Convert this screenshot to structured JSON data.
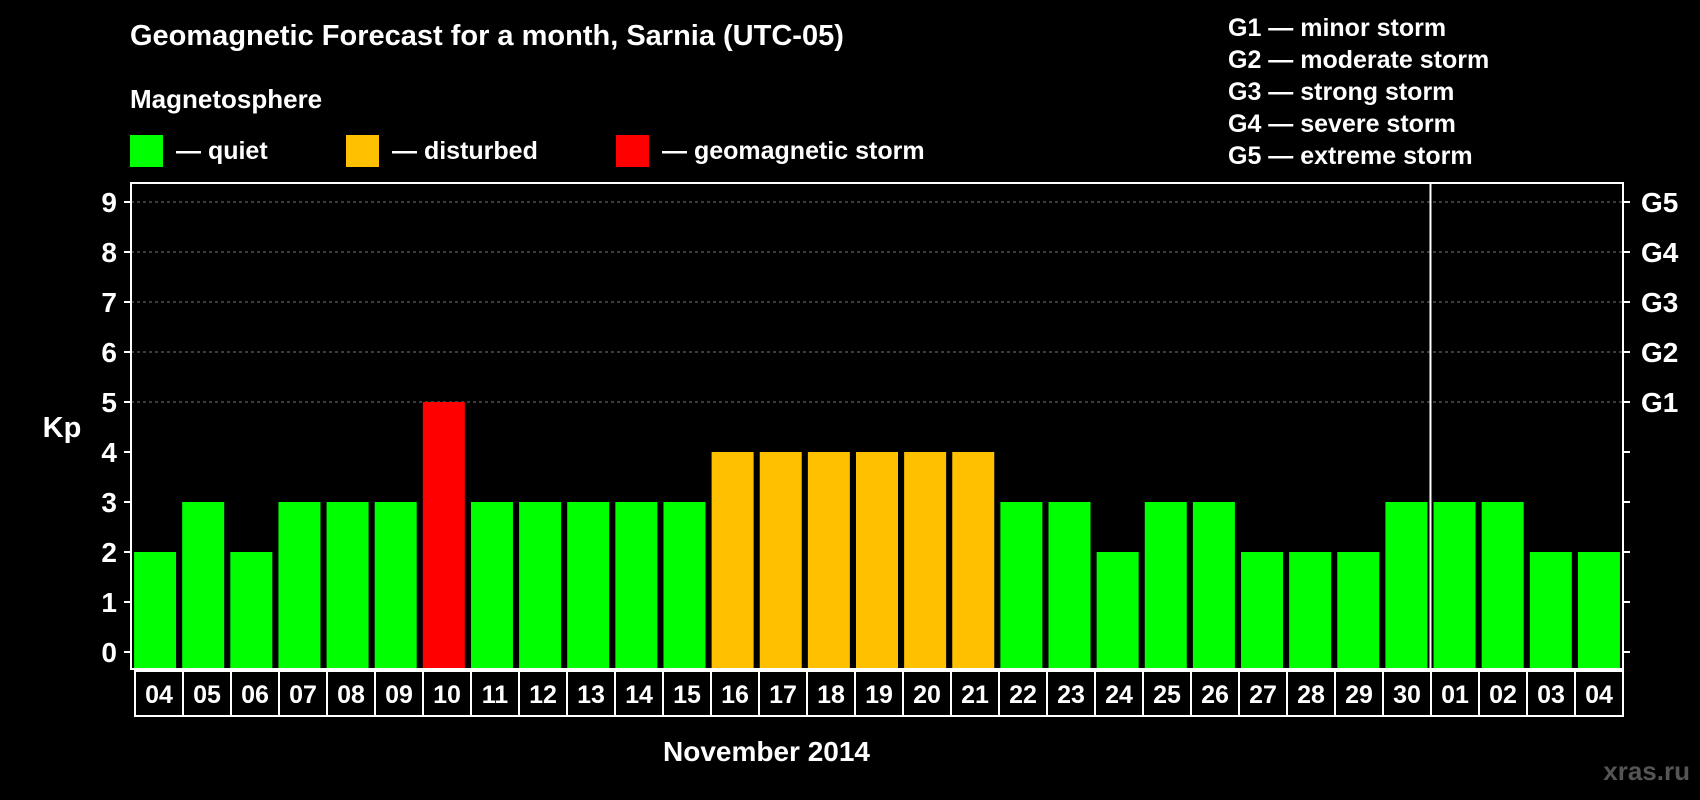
{
  "chart_data": {
    "type": "bar",
    "title": "Geomagnetic Forecast for a month, Sarnia (UTC-05)",
    "subtitle": "Magnetosphere",
    "xlabel": "November 2014",
    "ylabel": "Kp",
    "ylim": [
      0,
      9
    ],
    "yticks": [
      "0",
      "1",
      "2",
      "3",
      "4",
      "5",
      "6",
      "7",
      "8",
      "9"
    ],
    "right_axis_labels": [
      {
        "kp": 5,
        "label": "G1"
      },
      {
        "kp": 6,
        "label": "G2"
      },
      {
        "kp": 7,
        "label": "G3"
      },
      {
        "kp": 8,
        "label": "G4"
      },
      {
        "kp": 9,
        "label": "G5"
      }
    ],
    "categories": [
      "04",
      "05",
      "06",
      "07",
      "08",
      "09",
      "10",
      "11",
      "12",
      "13",
      "14",
      "15",
      "16",
      "17",
      "18",
      "19",
      "20",
      "21",
      "22",
      "23",
      "24",
      "25",
      "26",
      "27",
      "28",
      "29",
      "30",
      "01",
      "02",
      "03",
      "04"
    ],
    "values": [
      2,
      3,
      2,
      3,
      3,
      3,
      5,
      3,
      3,
      3,
      3,
      3,
      4,
      4,
      4,
      4,
      4,
      4,
      3,
      3,
      2,
      3,
      3,
      2,
      2,
      2,
      3,
      3,
      3,
      2,
      2
    ],
    "month_divider_after_index": 26,
    "color_rules": {
      "quiet_max": 3,
      "disturbed_value": 4,
      "storm_min": 5
    },
    "legend": [
      {
        "label": "— quiet",
        "color": "#00ff00"
      },
      {
        "label": "— disturbed",
        "color": "#ffc000"
      },
      {
        "label": "— geomagnetic storm",
        "color": "#ff0000"
      }
    ],
    "storm_scale": [
      "G1 — minor storm",
      "G2 — moderate storm",
      "G3 — strong storm",
      "G4 — severe storm",
      "G5 — extreme storm"
    ],
    "grid": "dashed above Kp 5"
  },
  "watermark": "xras.ru"
}
